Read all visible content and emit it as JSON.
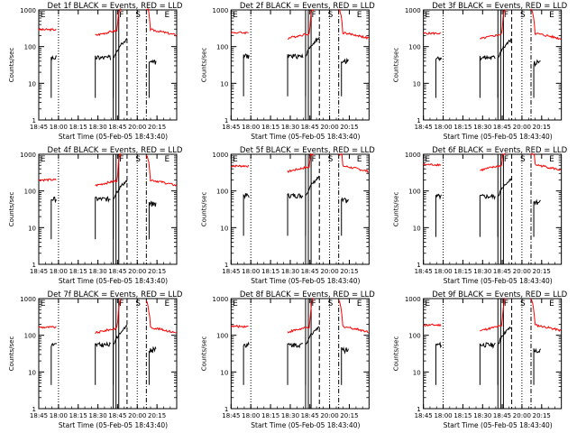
{
  "figure": {
    "background": "#ffffff",
    "axis_color": "#000000",
    "events_color": "#000000",
    "lld_color": "#ff0000"
  },
  "chart_data": [
    {
      "type": "line",
      "title": "Det 1f BLACK = Events, RED = LLD",
      "xlabel": "Start Time (05-Feb-05 18:43:40)",
      "ylabel": "Counts/sec",
      "yscale": "log",
      "ylim": [
        1,
        1000
      ],
      "xlim": [
        0,
        100
      ],
      "xticks": [
        {
          "v": 0,
          "label": "18:45"
        },
        {
          "v": 14.3,
          "label": "18:00"
        },
        {
          "v": 28.6,
          "label": "18:15"
        },
        {
          "v": 42.9,
          "label": "18:30"
        },
        {
          "v": 57.1,
          "label": "18:45"
        },
        {
          "v": 71.4,
          "label": "20:00"
        },
        {
          "v": 85.7,
          "label": "20:15"
        }
      ],
      "yticks": [
        {
          "v": 1,
          "label": "1"
        },
        {
          "v": 10,
          "label": "10"
        },
        {
          "v": 100,
          "label": "100"
        },
        {
          "v": 1000,
          "label": "1000"
        }
      ],
      "annotations": [
        {
          "text": "E",
          "x": 3
        },
        {
          "text": "F",
          "x": 60
        },
        {
          "text": "S",
          "x": 72
        },
        {
          "text": "E",
          "x": 93
        }
      ],
      "events_level": 50,
      "lld_level": 290
    },
    {
      "type": "line",
      "title": "Det 2f BLACK = Events, RED = LLD",
      "xlabel": "Start Time (05-Feb-05 18:43:40)",
      "ylabel": "Counts/sec",
      "yscale": "log",
      "ylim": [
        1,
        1000
      ],
      "xlim": [
        0,
        100
      ],
      "xticks": [
        {
          "v": 0,
          "label": "18:45"
        },
        {
          "v": 14.3,
          "label": "18:00"
        },
        {
          "v": 28.6,
          "label": "18:15"
        },
        {
          "v": 42.9,
          "label": "18:30"
        },
        {
          "v": 57.1,
          "label": "18:45"
        },
        {
          "v": 71.4,
          "label": "20:00"
        },
        {
          "v": 85.7,
          "label": "20:15"
        }
      ],
      "yticks": [
        {
          "v": 1,
          "label": "1"
        },
        {
          "v": 10,
          "label": "10"
        },
        {
          "v": 100,
          "label": "100"
        },
        {
          "v": 1000,
          "label": "1000"
        }
      ],
      "annotations": [
        {
          "text": "E",
          "x": 3
        },
        {
          "text": "F",
          "x": 60
        },
        {
          "text": "S",
          "x": 72
        },
        {
          "text": "E",
          "x": 93
        }
      ],
      "events_level": 55,
      "lld_level": 240
    },
    {
      "type": "line",
      "title": "Det 3f BLACK = Events, RED = LLD",
      "xlabel": "Start Time (05-Feb-05 18:43:40)",
      "ylabel": "Counts/sec",
      "yscale": "log",
      "ylim": [
        1,
        1000
      ],
      "xlim": [
        0,
        100
      ],
      "xticks": [
        {
          "v": 0,
          "label": "18:45"
        },
        {
          "v": 14.3,
          "label": "18:00"
        },
        {
          "v": 28.6,
          "label": "18:15"
        },
        {
          "v": 42.9,
          "label": "18:30"
        },
        {
          "v": 57.1,
          "label": "18:45"
        },
        {
          "v": 71.4,
          "label": "20:00"
        },
        {
          "v": 85.7,
          "label": "20:15"
        }
      ],
      "yticks": [
        {
          "v": 1,
          "label": "1"
        },
        {
          "v": 10,
          "label": "10"
        },
        {
          "v": 100,
          "label": "100"
        },
        {
          "v": 1000,
          "label": "1000"
        }
      ],
      "annotations": [
        {
          "text": "E",
          "x": 3
        },
        {
          "text": "F",
          "x": 60
        },
        {
          "text": "S",
          "x": 72
        },
        {
          "text": "E",
          "x": 93
        }
      ],
      "events_level": 50,
      "lld_level": 230
    },
    {
      "type": "line",
      "title": "Det 4f BLACK = Events, RED = LLD",
      "xlabel": "Start Time (05-Feb-05 18:43:40)",
      "ylabel": "Counts/sec",
      "yscale": "log",
      "ylim": [
        1,
        1000
      ],
      "xlim": [
        0,
        100
      ],
      "xticks": [
        {
          "v": 0,
          "label": "18:45"
        },
        {
          "v": 14.3,
          "label": "18:00"
        },
        {
          "v": 28.6,
          "label": "18:15"
        },
        {
          "v": 42.9,
          "label": "18:30"
        },
        {
          "v": 57.1,
          "label": "18:45"
        },
        {
          "v": 71.4,
          "label": "20:00"
        },
        {
          "v": 85.7,
          "label": "20:15"
        }
      ],
      "yticks": [
        {
          "v": 1,
          "label": "1"
        },
        {
          "v": 10,
          "label": "10"
        },
        {
          "v": 100,
          "label": "100"
        },
        {
          "v": 1000,
          "label": "1000"
        }
      ],
      "annotations": [
        {
          "text": "E",
          "x": 3
        },
        {
          "text": "F",
          "x": 60
        },
        {
          "text": "S",
          "x": 72
        },
        {
          "text": "E",
          "x": 93
        }
      ],
      "events_level": 60,
      "lld_level": 200
    },
    {
      "type": "line",
      "title": "Det 5f BLACK = Events, RED = LLD",
      "xlabel": "Start Time (05-Feb-05 18:43:40)",
      "ylabel": "Counts/sec",
      "yscale": "log",
      "ylim": [
        1,
        1000
      ],
      "xlim": [
        0,
        100
      ],
      "xticks": [
        {
          "v": 0,
          "label": "18:45"
        },
        {
          "v": 14.3,
          "label": "18:00"
        },
        {
          "v": 28.6,
          "label": "18:15"
        },
        {
          "v": 42.9,
          "label": "18:30"
        },
        {
          "v": 57.1,
          "label": "18:45"
        },
        {
          "v": 71.4,
          "label": "20:00"
        },
        {
          "v": 85.7,
          "label": "20:15"
        }
      ],
      "yticks": [
        {
          "v": 1,
          "label": "1"
        },
        {
          "v": 10,
          "label": "10"
        },
        {
          "v": 100,
          "label": "100"
        },
        {
          "v": 1000,
          "label": "1000"
        }
      ],
      "annotations": [
        {
          "text": "E",
          "x": 3
        },
        {
          "text": "F",
          "x": 60
        },
        {
          "text": "S",
          "x": 72
        },
        {
          "text": "E",
          "x": 93
        }
      ],
      "events_level": 75,
      "lld_level": 480
    },
    {
      "type": "line",
      "title": "Det 6f BLACK = Events, RED = LLD",
      "xlabel": "Start Time (05-Feb-05 18:43:40)",
      "ylabel": "Counts/sec",
      "yscale": "log",
      "ylim": [
        1,
        1000
      ],
      "xlim": [
        0,
        100
      ],
      "xticks": [
        {
          "v": 0,
          "label": "18:45"
        },
        {
          "v": 14.3,
          "label": "18:00"
        },
        {
          "v": 28.6,
          "label": "18:15"
        },
        {
          "v": 42.9,
          "label": "18:30"
        },
        {
          "v": 57.1,
          "label": "18:45"
        },
        {
          "v": 71.4,
          "label": "20:00"
        },
        {
          "v": 85.7,
          "label": "20:15"
        }
      ],
      "yticks": [
        {
          "v": 1,
          "label": "1"
        },
        {
          "v": 10,
          "label": "10"
        },
        {
          "v": 100,
          "label": "100"
        },
        {
          "v": 1000,
          "label": "1000"
        }
      ],
      "annotations": [
        {
          "text": "E",
          "x": 3
        },
        {
          "text": "F",
          "x": 60
        },
        {
          "text": "S",
          "x": 72
        },
        {
          "text": "E",
          "x": 93
        }
      ],
      "events_level": 70,
      "lld_level": 520
    },
    {
      "type": "line",
      "title": "Det 7f BLACK = Events, RED = LLD",
      "xlabel": "Start Time (05-Feb-05 18:43:40)",
      "ylabel": "Counts/sec",
      "yscale": "log",
      "ylim": [
        1,
        1000
      ],
      "xlim": [
        0,
        100
      ],
      "xticks": [
        {
          "v": 0,
          "label": "18:45"
        },
        {
          "v": 14.3,
          "label": "18:00"
        },
        {
          "v": 28.6,
          "label": "18:15"
        },
        {
          "v": 42.9,
          "label": "18:30"
        },
        {
          "v": 57.1,
          "label": "18:45"
        },
        {
          "v": 71.4,
          "label": "20:00"
        },
        {
          "v": 85.7,
          "label": "20:15"
        }
      ],
      "yticks": [
        {
          "v": 1,
          "label": "1"
        },
        {
          "v": 10,
          "label": "10"
        },
        {
          "v": 100,
          "label": "100"
        },
        {
          "v": 1000,
          "label": "1000"
        }
      ],
      "annotations": [
        {
          "text": "E",
          "x": 3
        },
        {
          "text": "F",
          "x": 60
        },
        {
          "text": "S",
          "x": 72
        },
        {
          "text": "E",
          "x": 93
        }
      ],
      "events_level": 55,
      "lld_level": 165
    },
    {
      "type": "line",
      "title": "Det 8f BLACK = Events, RED = LLD",
      "xlabel": "Start Time (05-Feb-05 18:43:40)",
      "ylabel": "Counts/sec",
      "yscale": "log",
      "ylim": [
        1,
        1000
      ],
      "xlim": [
        0,
        100
      ],
      "xticks": [
        {
          "v": 0,
          "label": "18:45"
        },
        {
          "v": 14.3,
          "label": "18:00"
        },
        {
          "v": 28.6,
          "label": "18:15"
        },
        {
          "v": 42.9,
          "label": "18:30"
        },
        {
          "v": 57.1,
          "label": "18:45"
        },
        {
          "v": 71.4,
          "label": "20:00"
        },
        {
          "v": 85.7,
          "label": "20:15"
        }
      ],
      "yticks": [
        {
          "v": 1,
          "label": "1"
        },
        {
          "v": 10,
          "label": "10"
        },
        {
          "v": 100,
          "label": "100"
        },
        {
          "v": 1000,
          "label": "1000"
        }
      ],
      "annotations": [
        {
          "text": "E",
          "x": 3
        },
        {
          "text": "F",
          "x": 60
        },
        {
          "text": "S",
          "x": 72
        },
        {
          "text": "E",
          "x": 93
        }
      ],
      "events_level": 55,
      "lld_level": 175
    },
    {
      "type": "line",
      "title": "Det 9f BLACK = Events, RED = LLD",
      "xlabel": "Start Time (05-Feb-05 18:43:40)",
      "ylabel": "Counts/sec",
      "yscale": "log",
      "ylim": [
        1,
        1000
      ],
      "xlim": [
        0,
        100
      ],
      "xticks": [
        {
          "v": 0,
          "label": "18:45"
        },
        {
          "v": 14.3,
          "label": "18:00"
        },
        {
          "v": 28.6,
          "label": "18:15"
        },
        {
          "v": 42.9,
          "label": "18:30"
        },
        {
          "v": 57.1,
          "label": "18:45"
        },
        {
          "v": 71.4,
          "label": "20:00"
        },
        {
          "v": 85.7,
          "label": "20:15"
        }
      ],
      "yticks": [
        {
          "v": 1,
          "label": "1"
        },
        {
          "v": 10,
          "label": "10"
        },
        {
          "v": 100,
          "label": "100"
        },
        {
          "v": 1000,
          "label": "1000"
        }
      ],
      "annotations": [
        {
          "text": "E",
          "x": 3
        },
        {
          "text": "F",
          "x": 60
        },
        {
          "text": "S",
          "x": 72
        },
        {
          "text": "E",
          "x": 93
        }
      ],
      "events_level": 55,
      "lld_level": 190
    }
  ]
}
